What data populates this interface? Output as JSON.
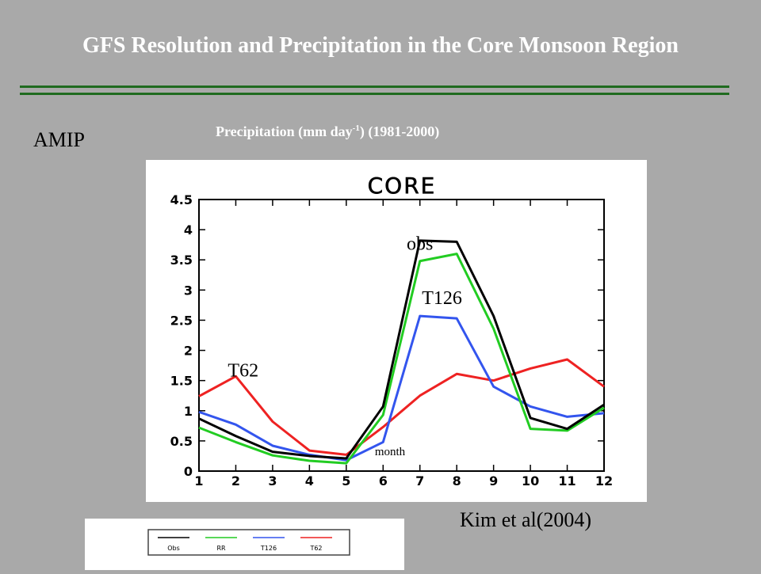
{
  "title": "GFS Resolution and Precipitation in the Core Monsoon Region",
  "label_amip": "AMIP",
  "subtitle_main": "Precipitation (mm day",
  "subtitle_sup": "-1",
  "subtitle_tail": ") (1981-2000)",
  "reference": "Kim et al(2004)",
  "colors": {
    "background": "#a9a9a9",
    "rule": "#1f6b1f"
  },
  "chart_data": {
    "type": "line",
    "title": "CORE",
    "xlabel": "month",
    "ylabel": "",
    "x": [
      1,
      2,
      3,
      4,
      5,
      6,
      7,
      8,
      9,
      10,
      11,
      12
    ],
    "ylim": [
      0,
      4.5
    ],
    "yticks": [
      "0",
      "0.5",
      "1",
      "1.5",
      "2",
      "2.5",
      "3",
      "3.5",
      "4",
      "4.5"
    ],
    "xticks": [
      "1",
      "2",
      "3",
      "4",
      "5",
      "6",
      "7",
      "8",
      "9",
      "10",
      "11",
      "12"
    ],
    "grid": false,
    "legend_position": "bottom",
    "series": [
      {
        "name": "Obs",
        "color": "#000000",
        "values": [
          0.87,
          0.58,
          0.32,
          0.25,
          0.21,
          1.07,
          3.82,
          3.8,
          2.57,
          0.88,
          0.7,
          1.1
        ]
      },
      {
        "name": "RR",
        "color": "#22cc22",
        "values": [
          0.72,
          0.48,
          0.26,
          0.17,
          0.13,
          0.93,
          3.48,
          3.6,
          2.36,
          0.7,
          0.67,
          1.05
        ]
      },
      {
        "name": "T126",
        "color": "#3355ee",
        "values": [
          0.98,
          0.77,
          0.42,
          0.27,
          0.18,
          0.48,
          2.57,
          2.53,
          1.4,
          1.07,
          0.9,
          0.96
        ]
      },
      {
        "name": "T62",
        "color": "#ee2222",
        "values": [
          1.24,
          1.57,
          0.82,
          0.34,
          0.27,
          0.73,
          1.25,
          1.61,
          1.5,
          1.7,
          1.85,
          1.4
        ]
      }
    ],
    "annotations": [
      {
        "text": "obs",
        "x": 7.0,
        "y": 3.8
      },
      {
        "text": "T126",
        "x": 7.6,
        "y": 2.9
      },
      {
        "text": "T62",
        "x": 2.2,
        "y": 1.7
      }
    ]
  }
}
